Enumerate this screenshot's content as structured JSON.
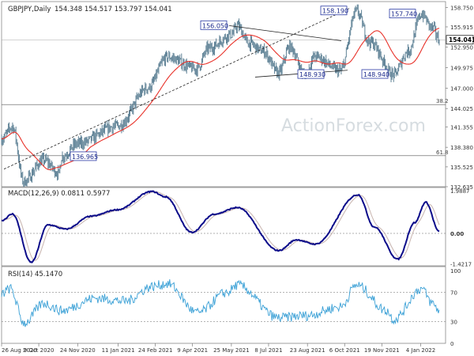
{
  "watermark": "ActionForex.com",
  "price_panel": {
    "title": "GBPJPY,Daily",
    "ohlc": [
      "154.348",
      "154.517",
      "153.797",
      "154.041"
    ],
    "current_price": "154.041",
    "fib_labels": [
      "38.2",
      "61.8"
    ],
    "y_ticks": [
      "158.750",
      "155.915",
      "152.950",
      "149.975",
      "147.000",
      "144.025",
      "141.355",
      "138.380",
      "135.525",
      "132.635"
    ]
  },
  "macd_panel": {
    "title": "MACD(12,26,9) 0.0811 0.5977",
    "y_ticks": [
      "1.9887",
      "0.00",
      "-1.4217"
    ]
  },
  "rsi_panel": {
    "title": "RSI(14) 45.1470",
    "y_ticks": [
      "100",
      "70",
      "30",
      "0"
    ]
  },
  "x_axis": {
    "ticks": [
      "26 Aug 2020",
      "9 Oct 2020",
      "24 Nov 2020",
      "11 Jan 2021",
      "24 Feb 2021",
      "9 Apr 2021",
      "25 May 2021",
      "8 Jul 2021",
      "23 Aug 2021",
      "6 Oct 2021",
      "19 Nov 2021",
      "4 Jan 2022"
    ]
  },
  "colors": {
    "bars": "#5f8296",
    "ma_line": "#e8322a",
    "macd_line": "#0c0c8a",
    "signal_line": "#c8b4ae",
    "rsi_line": "#3aa0d6",
    "trendline": "#222222",
    "label_border": "#2a3aa4",
    "label_text": "#1e2c8c"
  },
  "chart_data": [
    {
      "type": "line",
      "title": "GBPJPY,Daily",
      "y_range": [
        132.635,
        159.6
      ],
      "series": [],
      "points": [
        {
          "x": "2020-08-26",
          "y": 139.6
        },
        {
          "x": "2020-09-08",
          "y": 141.4
        },
        {
          "x": "2020-09-21",
          "y": 133.4
        },
        {
          "x": "2020-10-15",
          "y": 136.5
        },
        {
          "x": "2020-11-02",
          "y": 134.6
        },
        {
          "x": "2020-11-05",
          "y": 136.96
        },
        {
          "x": "2020-11-24",
          "y": 138.9
        },
        {
          "x": "2021-01-11",
          "y": 141.5
        },
        {
          "x": "2021-02-15",
          "y": 147.0
        },
        {
          "x": "2021-03-10",
          "y": 151.5
        },
        {
          "x": "2021-04-14",
          "y": 149.8
        },
        {
          "x": "2021-04-28",
          "y": 152.8
        },
        {
          "x": "2021-05-25",
          "y": 154.8
        },
        {
          "x": "2021-06-01",
          "y": 156.05
        },
        {
          "x": "2021-06-15",
          "y": 153.5
        },
        {
          "x": "2021-07-01",
          "y": 152.4
        },
        {
          "x": "2021-07-20",
          "y": 149.2
        },
        {
          "x": "2021-08-02",
          "y": 153.0
        },
        {
          "x": "2021-08-20",
          "y": 148.93
        },
        {
          "x": "2021-09-01",
          "y": 151.6
        },
        {
          "x": "2021-10-01",
          "y": 149.5
        },
        {
          "x": "2021-10-20",
          "y": 158.19
        },
        {
          "x": "2021-11-05",
          "y": 153.7
        },
        {
          "x": "2021-12-03",
          "y": 148.94
        },
        {
          "x": "2021-12-20",
          "y": 152.3
        },
        {
          "x": "2022-01-05",
          "y": 157.74
        },
        {
          "x": "2022-01-18",
          "y": 155.8
        },
        {
          "x": "2022-01-26",
          "y": 154.041
        }
      ],
      "annotations": [
        "156.050",
        "158.190",
        "157.740",
        "148.930",
        "148.940",
        "136.965"
      ]
    },
    {
      "type": "line",
      "title": "MACD(12,26,9) 0.0811 0.5977",
      "y_range": [
        -1.4217,
        1.9887
      ],
      "series": [],
      "points": [
        {
          "x": "2020-08-26",
          "y": 0.6
        },
        {
          "x": "2020-09-08",
          "y": 0.9
        },
        {
          "x": "2020-09-30",
          "y": -1.35
        },
        {
          "x": "2020-10-20",
          "y": 0.4
        },
        {
          "x": "2020-11-10",
          "y": 0.2
        },
        {
          "x": "2020-12-10",
          "y": 0.8
        },
        {
          "x": "2021-01-10",
          "y": 1.1
        },
        {
          "x": "2021-02-20",
          "y": 1.95
        },
        {
          "x": "2021-03-08",
          "y": 1.7
        },
        {
          "x": "2021-04-08",
          "y": 0.05
        },
        {
          "x": "2021-05-05",
          "y": 0.9
        },
        {
          "x": "2021-06-01",
          "y": 1.2
        },
        {
          "x": "2021-07-20",
          "y": -0.8
        },
        {
          "x": "2021-08-10",
          "y": -0.3
        },
        {
          "x": "2021-09-01",
          "y": -0.5
        },
        {
          "x": "2021-10-22",
          "y": 1.8
        },
        {
          "x": "2021-11-10",
          "y": 0.3
        },
        {
          "x": "2021-12-08",
          "y": -1.2
        },
        {
          "x": "2021-12-28",
          "y": 0.5
        },
        {
          "x": "2022-01-10",
          "y": 1.45
        },
        {
          "x": "2022-01-26",
          "y": 0.0811
        }
      ]
    },
    {
      "type": "line",
      "title": "RSI(14) 45.1470",
      "y_range": [
        0,
        100
      ],
      "series": [],
      "points": [
        {
          "x": "2020-08-26",
          "y": 68
        },
        {
          "x": "2020-09-05",
          "y": 75
        },
        {
          "x": "2020-09-22",
          "y": 28
        },
        {
          "x": "2020-10-15",
          "y": 55
        },
        {
          "x": "2020-11-05",
          "y": 45
        },
        {
          "x": "2020-12-15",
          "y": 62
        },
        {
          "x": "2021-01-20",
          "y": 58
        },
        {
          "x": "2021-02-20",
          "y": 78
        },
        {
          "x": "2021-03-10",
          "y": 82
        },
        {
          "x": "2021-04-15",
          "y": 42
        },
        {
          "x": "2021-05-20",
          "y": 70
        },
        {
          "x": "2021-06-01",
          "y": 80
        },
        {
          "x": "2021-07-20",
          "y": 35
        },
        {
          "x": "2021-08-20",
          "y": 38
        },
        {
          "x": "2021-10-01",
          "y": 50
        },
        {
          "x": "2021-10-20",
          "y": 80
        },
        {
          "x": "2021-11-25",
          "y": 45
        },
        {
          "x": "2021-12-03",
          "y": 33
        },
        {
          "x": "2022-01-05",
          "y": 75
        },
        {
          "x": "2022-01-18",
          "y": 55
        },
        {
          "x": "2022-01-26",
          "y": 45.147
        }
      ]
    }
  ]
}
